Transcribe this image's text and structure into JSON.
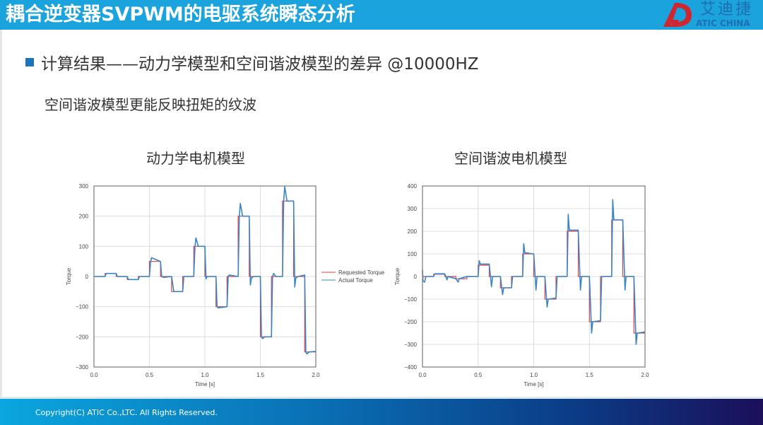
{
  "header": {
    "title": "耦合逆变器SVPWM的电驱系统瞬态分析",
    "logo": {
      "cn": "艾迪捷",
      "en": "ATIC CHINA",
      "icon": "ad-logo-icon"
    }
  },
  "content": {
    "bullet": "计算结果——动力学模型和空间谐波模型的差异 @10000HZ",
    "subtext": "空间谐波模型更能反映扭矩的纹波"
  },
  "charts": {
    "left_title": "动力学电机模型",
    "right_title": "空间谐波电机模型"
  },
  "footer": {
    "copyright": "Copyright(C) ATIC Co.,LTC. All Rights Reserved."
  },
  "colors": {
    "header_bg": "#1aa3dc",
    "requested": "#d9404a",
    "actual": "#3a86c4",
    "bullet": "#1f73b7"
  },
  "chart_data": [
    {
      "type": "line",
      "title": "动力学电机模型",
      "xlabel": "Time [s]",
      "ylabel": "Torque",
      "xlim": [
        0.0,
        2.0
      ],
      "ylim": [
        -300,
        300
      ],
      "xticks": [
        0.0,
        0.5,
        1.0,
        1.5,
        2.0
      ],
      "yticks": [
        -300,
        -200,
        -100,
        0,
        100,
        200,
        300
      ],
      "grid": true,
      "legend": {
        "position": "right-outside",
        "entries": [
          "Requested Torque",
          "Actual Torque"
        ]
      },
      "series": [
        {
          "name": "Requested Torque",
          "x": [
            0.0,
            0.1,
            0.1,
            0.2,
            0.2,
            0.3,
            0.3,
            0.4,
            0.4,
            0.5,
            0.5,
            0.6,
            0.6,
            0.7,
            0.7,
            0.8,
            0.8,
            0.9,
            0.9,
            1.0,
            1.0,
            1.1,
            1.1,
            1.2,
            1.2,
            1.3,
            1.3,
            1.4,
            1.4,
            1.5,
            1.5,
            1.6,
            1.6,
            1.7,
            1.7,
            1.8,
            1.8,
            1.9,
            1.9,
            2.0
          ],
          "y": [
            0,
            0,
            10,
            10,
            0,
            0,
            -10,
            -10,
            0,
            0,
            50,
            50,
            0,
            0,
            -50,
            -50,
            0,
            0,
            100,
            100,
            0,
            0,
            -100,
            -100,
            0,
            0,
            200,
            200,
            0,
            0,
            -200,
            -200,
            0,
            0,
            250,
            250,
            0,
            0,
            -250,
            -250
          ]
        },
        {
          "name": "Actual Torque",
          "x": [
            0.0,
            0.1,
            0.11,
            0.2,
            0.21,
            0.3,
            0.31,
            0.4,
            0.41,
            0.5,
            0.51,
            0.52,
            0.6,
            0.61,
            0.63,
            0.7,
            0.72,
            0.8,
            0.81,
            0.9,
            0.91,
            0.92,
            0.94,
            1.0,
            1.01,
            1.02,
            1.1,
            1.11,
            1.12,
            1.2,
            1.21,
            1.22,
            1.3,
            1.31,
            1.32,
            1.34,
            1.4,
            1.41,
            1.42,
            1.44,
            1.5,
            1.51,
            1.52,
            1.54,
            1.6,
            1.61,
            1.62,
            1.64,
            1.7,
            1.71,
            1.72,
            1.74,
            1.8,
            1.81,
            1.82,
            1.84,
            1.9,
            1.91,
            1.92,
            1.94,
            2.0
          ],
          "y": [
            0,
            0,
            10,
            10,
            0,
            0,
            -10,
            -10,
            0,
            0,
            48,
            62,
            50,
            0,
            -3,
            0,
            -50,
            -50,
            0,
            0,
            98,
            128,
            100,
            100,
            -8,
            0,
            0,
            -100,
            -104,
            -100,
            0,
            5,
            0,
            200,
            242,
            200,
            200,
            -28,
            -5,
            0,
            0,
            -200,
            -206,
            -200,
            -200,
            0,
            10,
            0,
            0,
            250,
            298,
            250,
            250,
            -35,
            -5,
            0,
            5,
            -250,
            -257,
            -250,
            -248
          ]
        }
      ]
    },
    {
      "type": "line",
      "title": "空间谐波电机模型",
      "xlabel": "Time [s]",
      "ylabel": "Torque",
      "xlim": [
        0.0,
        2.0
      ],
      "ylim": [
        -400,
        400
      ],
      "xticks": [
        0.0,
        0.5,
        1.0,
        1.5,
        2.0
      ],
      "yticks": [
        -400,
        -300,
        -200,
        -100,
        0,
        100,
        200,
        300,
        400
      ],
      "grid": true,
      "legend": {
        "position": "none-visible",
        "entries": []
      },
      "series": [
        {
          "name": "Requested Torque",
          "x": [
            0.0,
            0.1,
            0.1,
            0.2,
            0.2,
            0.3,
            0.3,
            0.4,
            0.4,
            0.5,
            0.5,
            0.6,
            0.6,
            0.7,
            0.7,
            0.8,
            0.8,
            0.9,
            0.9,
            1.0,
            1.0,
            1.1,
            1.1,
            1.2,
            1.2,
            1.3,
            1.3,
            1.4,
            1.4,
            1.5,
            1.5,
            1.6,
            1.6,
            1.7,
            1.7,
            1.8,
            1.8,
            1.9,
            1.9,
            2.0
          ],
          "y": [
            0,
            0,
            10,
            10,
            0,
            0,
            -10,
            -10,
            0,
            0,
            50,
            50,
            0,
            0,
            -50,
            -50,
            0,
            0,
            100,
            100,
            0,
            0,
            -100,
            -100,
            0,
            0,
            200,
            200,
            0,
            0,
            -200,
            -200,
            0,
            0,
            250,
            250,
            0,
            0,
            -250,
            -250
          ]
        },
        {
          "name": "Actual Torque",
          "x": [
            0.0,
            0.005,
            0.02,
            0.03,
            0.1,
            0.11,
            0.2,
            0.22,
            0.23,
            0.3,
            0.32,
            0.33,
            0.4,
            0.5,
            0.51,
            0.52,
            0.6,
            0.62,
            0.63,
            0.7,
            0.72,
            0.73,
            0.8,
            0.81,
            0.9,
            0.91,
            0.92,
            1.0,
            1.02,
            1.03,
            1.1,
            1.12,
            1.13,
            1.2,
            1.21,
            1.3,
            1.31,
            1.32,
            1.4,
            1.42,
            1.43,
            1.5,
            1.52,
            1.53,
            1.6,
            1.61,
            1.7,
            1.71,
            1.72,
            1.8,
            1.82,
            1.83,
            1.9,
            1.92,
            1.93,
            2.0
          ],
          "y": [
            30,
            -20,
            -25,
            0,
            0,
            12,
            12,
            -15,
            0,
            -10,
            -25,
            -10,
            0,
            0,
            70,
            55,
            55,
            -45,
            0,
            0,
            -80,
            -50,
            -50,
            0,
            0,
            145,
            105,
            100,
            -60,
            0,
            0,
            -135,
            -100,
            -95,
            0,
            0,
            275,
            205,
            205,
            -60,
            0,
            0,
            -250,
            -200,
            -195,
            0,
            0,
            340,
            250,
            250,
            -60,
            0,
            0,
            -300,
            -250,
            -245
          ]
        }
      ]
    }
  ]
}
